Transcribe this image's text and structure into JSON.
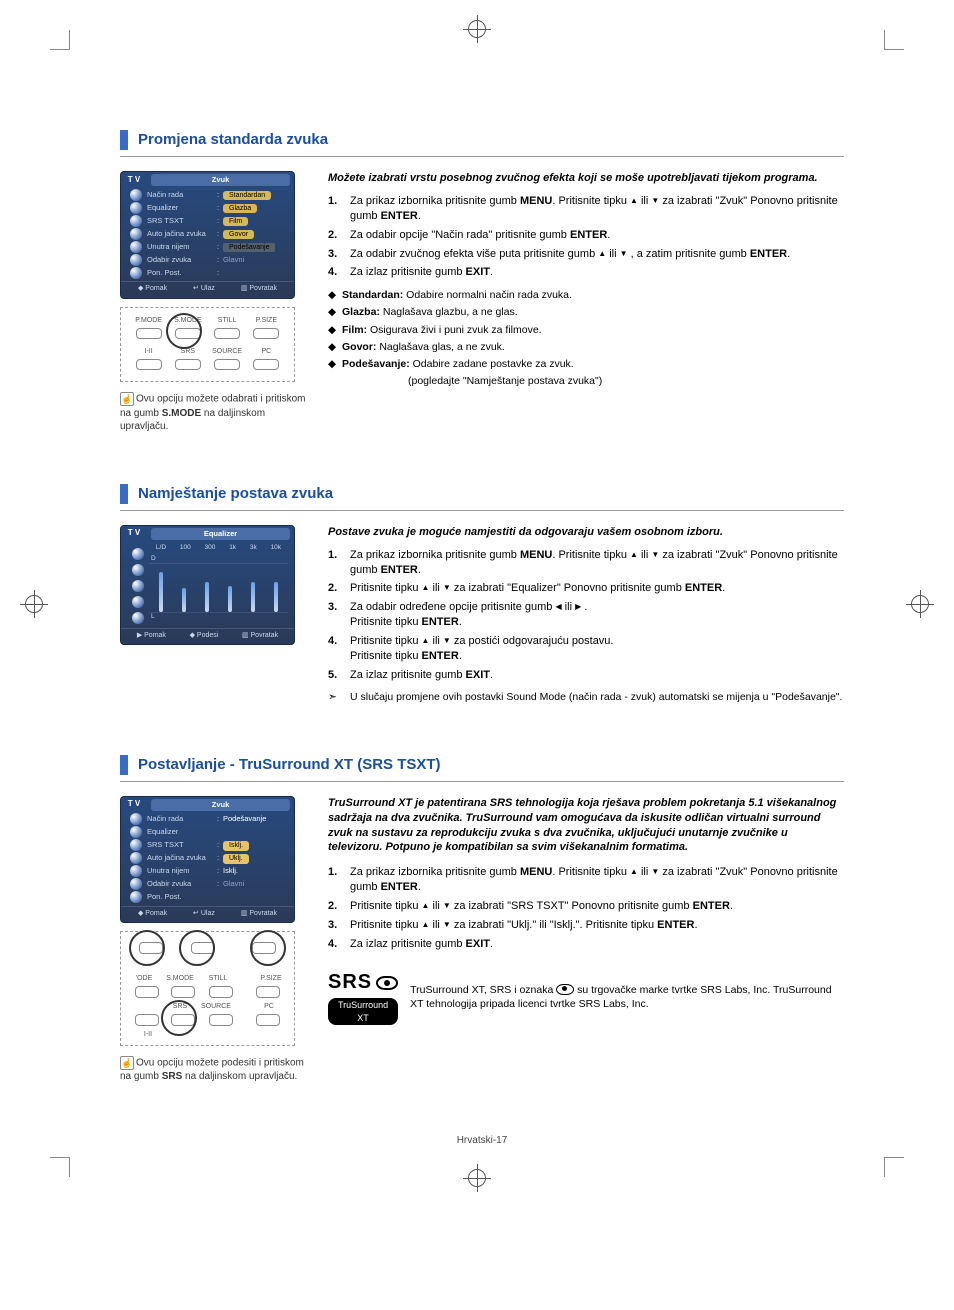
{
  "page_footer": "Hrvatski-17",
  "colors": {
    "title": "#1b4ea0",
    "title_bar": "#3a6bc4",
    "osd_bg_top": "#274a80",
    "osd_bg_bot": "#2a3a58",
    "osd_header": "#4a6da8",
    "pill": "#e6c46a"
  },
  "section1": {
    "title": "Promjena standarda zvuka",
    "intro": "Možete izabrati vrstu posebnog zvučnog efekta koji se moše upotrebljavati tijekom programa.",
    "steps": [
      "Za prikaz izbornika pritisnite gumb <b>MENU</b>. Pritisnite tipku <span class='tri'>▲</span> ili <span class='tri'>▼</span> za izabrati \"Zvuk\" Ponovno pritisnite gumb <b>ENTER</b>.",
      "Za odabir opcije \"Način rada\" pritisnite gumb <b>ENTER</b>.",
      "Za odabir zvučnog efekta više puta pritisnite gumb <span class='tri'>▲</span> ili <span class='tri'>▼</span> , a zatim pritisnite gumb <b>ENTER</b>.",
      "Za izlaz pritisnite gumb <b>EXIT</b>."
    ],
    "bullets": [
      "<b>Standardan:</b> Odabire normalni način rada zvuka.",
      "<b>Glazba:</b> Naglašava glazbu, a ne glas.",
      "<b>Film:</b> Osigurava živi i puni zvuk za filmove.",
      "<b>Govor:</b> Naglašava glas, a ne zvuk.",
      "<b>Podešavanje:</b> Odabire zadane postavke za zvuk."
    ],
    "bullet_indent": "(pogledajte \"Namještanje postava zvuka\")",
    "hint": "Ovu opciju možete odabrati i pritiskom na gumb <b>S.MODE</b> na daljinskom upravljaču.",
    "osd": {
      "tv": "T V",
      "header": "Zvuk",
      "rows": [
        {
          "label": "Način rada",
          "value": "Standardan",
          "pill": true,
          "selected": false
        },
        {
          "label": "Equalizer",
          "value": "Glazba",
          "pill": true,
          "selected": false
        },
        {
          "label": "SRS TSXT",
          "value": "Film",
          "pill": true,
          "selected": false
        },
        {
          "label": "Auto jačina zvuka",
          "value": "Govor",
          "pill": true,
          "selected": false
        },
        {
          "label": "Unutra nijem",
          "value": "Podešavanje",
          "pill": true,
          "selected": true
        },
        {
          "label": "Odabir zvuka",
          "value": "Glavni",
          "pill": false,
          "dim": true
        },
        {
          "label": "Pon. Post.",
          "value": "",
          "pill": false,
          "dim": true
        }
      ],
      "foot": [
        "◆ Pomak",
        "↵ Ulaz",
        "▥ Povratak"
      ]
    },
    "remote": {
      "labels_top": [
        "P.MODE",
        "S.MODE",
        "STILL",
        "P.SIZE"
      ],
      "labels_bot": [
        "",
        "SRS",
        "SOURCE",
        "PC"
      ],
      "left_bot": "I-II"
    }
  },
  "section2": {
    "title": "Namještanje postava zvuka",
    "intro": "Postave zvuka je moguće namjestiti da odgovaraju vašem osobnom izboru.",
    "steps": [
      "Za prikaz izbornika pritisnite gumb <b>MENU</b>. Pritisnite tipku <span class='tri'>▲</span> ili <span class='tri'>▼</span> za izabrati \"Zvuk\" Ponovno pritisnite gumb <b>ENTER</b>.",
      "Pritisnite tipku <span class='tri'>▲</span> ili <span class='tri'>▼</span> za izabrati \"Equalizer\" Ponovno pritisnite gumb <b>ENTER</b>.",
      "Za odabir određene opcije pritisnite gumb <span class='tri'>◀</span> ili <span class='tri'>▶</span> .<br>Pritisnite tipku <b>ENTER</b>.",
      "Pritisnite tipku <span class='tri'>▲</span> ili <span class='tri'>▼</span>  za postići odgovarajuću postavu.<br>Pritisnite tipku <b>ENTER</b>.",
      "Za izlaz pritisnite gumb <b>EXIT</b>."
    ],
    "note": "U slučaju promjene ovih postavki Sound Mode (način rada - zvuk) automatski se mijenja u \"Podešavanje\".",
    "eq": {
      "tv": "T V",
      "header": "Equalizer",
      "cols": [
        "L/D",
        "100",
        "300",
        "1k",
        "3k",
        "10k"
      ],
      "heights": [
        40,
        24,
        30,
        26,
        30,
        30
      ],
      "foot": [
        "▶ Pomak",
        "◆ Podesi",
        "▥ Povratak"
      ]
    }
  },
  "section3": {
    "title": "Postavljanje - TruSurround XT (SRS TSXT)",
    "intro": "TruSurround XT je patentirana SRS tehnologija koja rješava problem pokretanja 5.1 višekanalnog sadržaja na dva zvučnika. TruSurround vam omogućava da iskusite odličan virtualni surround zvuk na sustavu za reprodukciju zvuka s dva zvučnika, uključujući unutarnje zvučnike u<br>televizoru. Potpuno je kompatibilan sa svim višekanalnim formatima.",
    "steps": [
      "Za prikaz izbornika pritisnite gumb <b>MENU</b>. Pritisnite tipku <span class='tri'>▲</span> ili <span class='tri'>▼</span> za izabrati \"Zvuk\" Ponovno pritisnite gumb <b>ENTER</b>.",
      "Pritisnite tipku <span class='tri'>▲</span> ili <span class='tri'>▼</span> za izabrati \"SRS TSXT\" Ponovno pritisnite gumb <b>ENTER</b>.",
      "Pritisnite tipku <span class='tri'>▲</span> ili <span class='tri'>▼</span> za izabrati \"Uklj.\" ili \"Isklj.\". Pritisnite tipku <b>ENTER</b>.",
      "Za izlaz pritisnite gumb <b>EXIT</b>."
    ],
    "hint": "Ovu opciju možete podesiti i pritiskom na gumb <b>SRS</b> na daljinskom upravljaču.",
    "osd": {
      "tv": "T V",
      "header": "Zvuk",
      "rows": [
        {
          "label": "Način rada",
          "value": "Podešavanje",
          "colon": true,
          "dim": false
        },
        {
          "label": "Equalizer",
          "value": "",
          "dim": true
        },
        {
          "label": "SRS TSXT",
          "value": "Isklj.",
          "pill": true,
          "selected": false
        },
        {
          "label": "Auto jačina zvuka",
          "value": "Uklj.",
          "pill": true,
          "selected": true
        },
        {
          "label": "Unutra nijem",
          "value": "Isklj.",
          "colon": true
        },
        {
          "label": "Odabir zvuka",
          "value": "Glavni",
          "colon": true,
          "dim": true
        },
        {
          "label": "Pon. Post.",
          "value": "",
          "dim": true
        }
      ],
      "foot": [
        "◆ Pomak",
        "↵ Ulaz",
        "▥ Povratak"
      ]
    },
    "srs_text": "TruSurround XT, SRS i oznaka <span class='eye-inline'></span> su trgovačke marke tvrtke SRS Labs, Inc. TruSurround XT tehnologija pripada licenci tvrtke SRS Labs, Inc.",
    "srs_bar": "TruSurround XT",
    "srs_big": "SRS"
  }
}
